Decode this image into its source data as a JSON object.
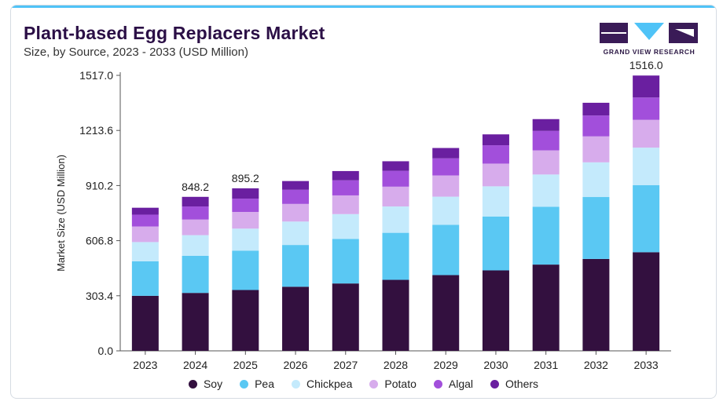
{
  "header": {
    "title": "Plant-based Egg Replacers Market",
    "subtitle": "Size, by Source, 2023 - 2033 (USD Million)"
  },
  "logo": {
    "text": "GRAND VIEW RESEARCH"
  },
  "chart_data": {
    "type": "bar",
    "stacked": true,
    "ylabel": "Market Size (USD Million)",
    "xlabel": "",
    "ylim": [
      0,
      1517.0
    ],
    "yticks": [
      "0.0",
      "303.4",
      "606.8",
      "910.2",
      "1213.6",
      "1517.0"
    ],
    "grid": false,
    "legend_position": "bottom",
    "categories": [
      "2023",
      "2024",
      "2025",
      "2026",
      "2027",
      "2028",
      "2029",
      "2030",
      "2031",
      "2032",
      "2033"
    ],
    "series": [
      {
        "name": "Soy",
        "color": "#33103f",
        "values": [
          303,
          319,
          335,
          353,
          371,
          391,
          417,
          443,
          475,
          506,
          543
        ]
      },
      {
        "name": "Pea",
        "color": "#5ac8f3",
        "values": [
          190,
          204,
          217,
          230,
          245,
          259,
          277,
          297,
          318,
          341,
          369
        ]
      },
      {
        "name": "Chickpea",
        "color": "#c4eafc",
        "values": [
          106,
          114,
          121,
          129,
          137,
          145,
          155,
          166,
          178,
          191,
          207
        ]
      },
      {
        "name": "Potato",
        "color": "#d7acec",
        "values": [
          86,
          86,
          92,
          97,
          103,
          109,
          117,
          125,
          133,
          143,
          153
        ]
      },
      {
        "name": "Algal",
        "color": "#a24fdb",
        "values": [
          65,
          72,
          73,
          78,
          83,
          87,
          94,
          101,
          107,
          115,
          123
        ]
      },
      {
        "name": "Others",
        "color": "#6a1fa0",
        "values": [
          38,
          53,
          57,
          48,
          51,
          53,
          57,
          60,
          65,
          70,
          121
        ]
      }
    ],
    "data_labels": [
      {
        "category": "2024",
        "text": "848.2"
      },
      {
        "category": "2025",
        "text": "895.2"
      },
      {
        "category": "2033",
        "text": "1516.0"
      }
    ]
  }
}
